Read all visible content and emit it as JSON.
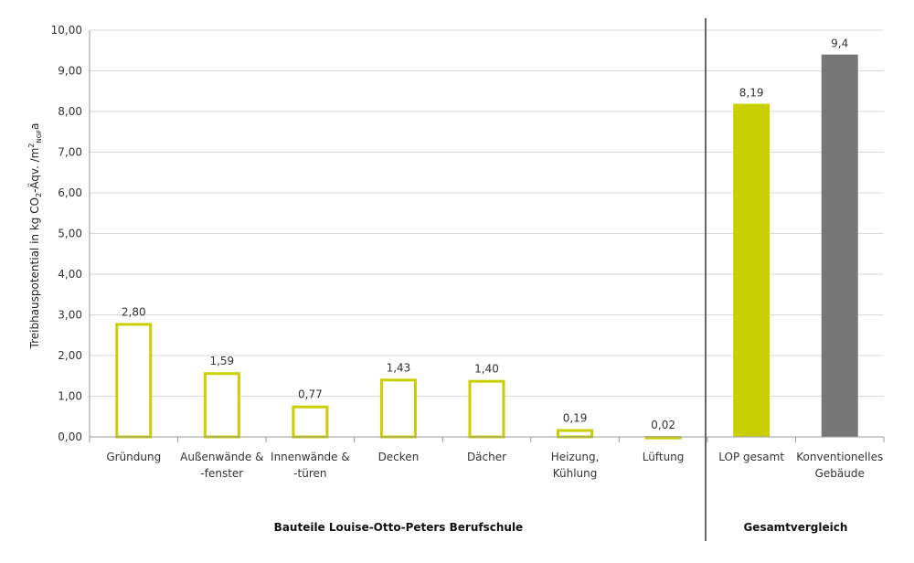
{
  "chart_data": {
    "type": "bar",
    "ylabel": {
      "prefix": "Treibhauspotential in kg CO",
      "sub_co2": "2",
      "middle": "-Äqv. /m",
      "sup_m": "2",
      "sub_ngf": "NGF",
      "suffix": "a"
    },
    "ylim": [
      0,
      10
    ],
    "yticks": [
      "0,00",
      "1,00",
      "2,00",
      "3,00",
      "4,00",
      "5,00",
      "6,00",
      "7,00",
      "8,00",
      "9,00",
      "10,00"
    ],
    "grid": true,
    "categories": [
      [
        "Gründung"
      ],
      [
        "Außenwände &",
        "-fenster"
      ],
      [
        "Innenwände &",
        "-türen"
      ],
      [
        "Decken"
      ],
      [
        "Dächer"
      ],
      [
        "Heizung,",
        "Kühlung"
      ],
      [
        "Lüftung"
      ],
      [
        "LOP gesamt"
      ],
      [
        "Konventionelles",
        "Gebäude"
      ]
    ],
    "values": [
      2.8,
      1.59,
      0.77,
      1.43,
      1.4,
      0.19,
      0.02,
      8.19,
      9.4
    ],
    "data_labels": [
      "2,80",
      "1,59",
      "0,77",
      "1,43",
      "1,40",
      "0,19",
      "0,02",
      "8,19",
      "9,4"
    ],
    "bar_styles": [
      "outline",
      "outline",
      "outline",
      "outline",
      "outline",
      "outline",
      "outline",
      "filled",
      "filled"
    ],
    "bar_colors": [
      "#c9cf00",
      "#c9cf00",
      "#c9cf00",
      "#c9cf00",
      "#c9cf00",
      "#c9cf00",
      "#c9cf00",
      "#c9cf00",
      "#777777"
    ],
    "groups": [
      {
        "label": "Bauteile Louise-Otto-Peters Berufschule",
        "from": 0,
        "to": 6
      },
      {
        "label": "Gesamtvergleich",
        "from": 7,
        "to": 8
      }
    ],
    "colors": {
      "accent": "#c9cf00",
      "gray": "#777777",
      "grid": "#d9d9d9",
      "separator": "#666666"
    }
  }
}
